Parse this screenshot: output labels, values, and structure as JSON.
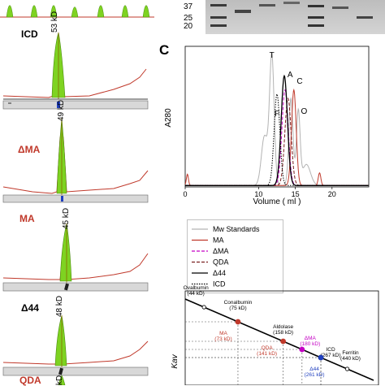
{
  "panel_c_letter": "C",
  "left_panels": [
    {
      "label": "ICD",
      "kd": "53 kD",
      "label_color": "#000000"
    },
    {
      "label": "ΔMA",
      "kd": "49 kD",
      "label_color": "#c0392b"
    },
    {
      "label": "MA",
      "kd": "45 kD",
      "label_color": "#c0392b"
    },
    {
      "label": "Δ44",
      "kd": "48 kD",
      "label_color": "#000000"
    },
    {
      "label": "QDA",
      "kd": "kD",
      "label_color": "#c0392b"
    }
  ],
  "gel": {
    "markers": [
      "37",
      "25",
      "20"
    ]
  },
  "chart_data": [
    {
      "type": "line",
      "xlabel": "Volume  ( ml )",
      "ylabel": "A280",
      "xlim": [
        0,
        25
      ],
      "x_ticks": [
        0,
        10,
        15,
        20
      ],
      "peak_labels": [
        "T",
        "A",
        "C",
        "O",
        "F"
      ],
      "series": [
        {
          "name": "Mw Standards",
          "color": "#b3b3b3",
          "style": "solid",
          "peaks": [
            11.8,
            14.4,
            15.4
          ]
        },
        {
          "name": "MA",
          "color": "#c0392b",
          "style": "solid",
          "peaks": [
            14.8,
            18.3
          ]
        },
        {
          "name": "ΔMA",
          "color": "#c400c4",
          "style": "dashed",
          "peaks": [
            13.6
          ]
        },
        {
          "name": "QDA",
          "color": "#7a1f1f",
          "style": "dashed",
          "peaks": [
            14.0
          ]
        },
        {
          "name": "Δ44",
          "color": "#000000",
          "style": "solid",
          "peaks": [
            13.5
          ]
        },
        {
          "name": "ICD",
          "color": "#000000",
          "style": "dotted",
          "peaks": [
            12.5
          ]
        }
      ]
    },
    {
      "type": "scatter",
      "ylabel": "Kav",
      "points": [
        {
          "name": "Ovalbumin",
          "sub": "(44 kD)",
          "kind": "standard"
        },
        {
          "name": "Conalbumin",
          "sub": "(75 kD)",
          "kind": "standard"
        },
        {
          "name": "MA",
          "sub": "(73 kD)",
          "kind": "sample",
          "color": "#c0392b"
        },
        {
          "name": "Aldolase",
          "sub": "(158 kD)",
          "kind": "standard"
        },
        {
          "name": "QDA",
          "sub": "(141 kD)",
          "kind": "sample",
          "color": "#c0392b"
        },
        {
          "name": "ΔMA",
          "sub": "(180 kD)",
          "kind": "sample",
          "color": "#c400c4"
        },
        {
          "name": "ICD",
          "sub": "(267 kD)",
          "kind": "sample",
          "color": "#000000"
        },
        {
          "name": "Δ44",
          "sub": "(261 kD)",
          "kind": "sample",
          "color": "#1f3fbf"
        },
        {
          "name": "Ferritin",
          "sub": "(440 kD)",
          "kind": "standard"
        }
      ]
    }
  ]
}
